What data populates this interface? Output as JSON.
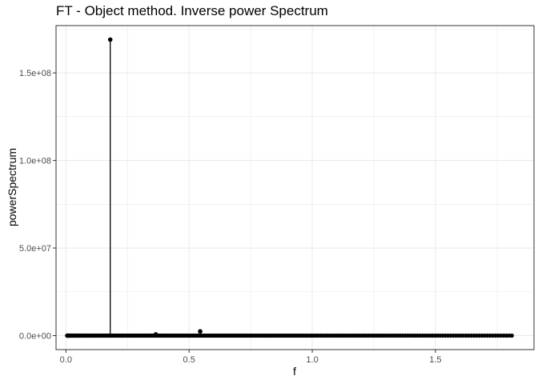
{
  "chart_data": {
    "type": "scatter",
    "title": "FT - Object method. Inverse power Spectrum",
    "xlabel": "f",
    "ylabel": "powerSpectrum",
    "xlim": [
      -0.04,
      1.9
    ],
    "ylim": [
      -8000000,
      177000000
    ],
    "x_ticks": [
      {
        "value": 0.0,
        "label": "0.0"
      },
      {
        "value": 0.5,
        "label": "0.5"
      },
      {
        "value": 1.0,
        "label": "1.0"
      },
      {
        "value": 1.5,
        "label": "1.5"
      }
    ],
    "y_ticks": [
      {
        "value": 0,
        "label": "0.0e+00"
      },
      {
        "value": 50000000,
        "label": "5.0e+07"
      },
      {
        "value": 100000000,
        "label": "1.0e+08"
      },
      {
        "value": 150000000,
        "label": "1.5e+08"
      }
    ],
    "grid": true,
    "series": [
      {
        "style": "points_with_vertical_segments",
        "points": [
          {
            "x": 0.18,
            "y": 169000000
          },
          {
            "x": 0.365,
            "y": 700000
          },
          {
            "x": 0.545,
            "y": 2400000
          }
        ],
        "baseline_range": {
          "x_start": 0.005,
          "x_end": 1.81,
          "y": 0
        }
      }
    ],
    "colors": {
      "points": "#000000",
      "grid": "#ebebeb",
      "panel_border": "#333333"
    }
  }
}
